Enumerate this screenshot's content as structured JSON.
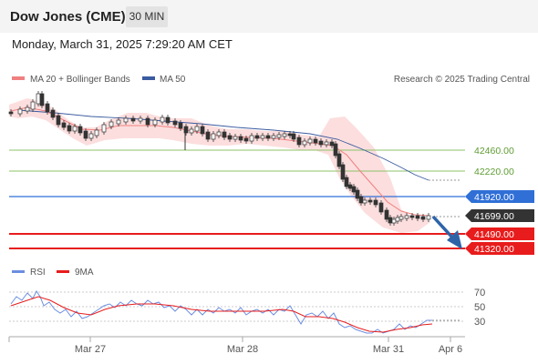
{
  "header": {
    "title": "Dow Jones (CME)",
    "timeframe": "30 MIN"
  },
  "date_text": "Monday, March 31, 2025 7:29:20 AM CET",
  "legend": {
    "ma20_label": "MA 20 + Bollinger Bands",
    "ma50_label": "MA 50",
    "credit": "Research © 2025 Trading Central"
  },
  "rsi_legend": {
    "rsi_label": "RSI",
    "ma9_label": "9MA"
  },
  "colors": {
    "ma20": "#f08080",
    "ma50": "#3a5ba0",
    "resistance": "#8dc36a",
    "pivot": "#2f6fd6",
    "support": "#e81c1c",
    "last": "#333333",
    "rsi": "#6c8ee0",
    "rsi_ma": "#e81c1c"
  },
  "chart_data": [
    {
      "type": "candlestick",
      "x_ticks": [
        "Mar 27",
        "Mar 28",
        "Mar 31",
        "Apr 6"
      ],
      "levels": [
        {
          "value": "42460.00",
          "type": "resistance"
        },
        {
          "value": "42220.00",
          "type": "resistance"
        },
        {
          "value": "41920.00",
          "type": "pivot"
        },
        {
          "value": "41699.00",
          "type": "last"
        },
        {
          "value": "41490.00",
          "type": "support"
        },
        {
          "value": "41320.00",
          "type": "support"
        }
      ],
      "forecast": "down"
    },
    {
      "type": "line",
      "title": "RSI",
      "y_ticks": [
        "70",
        "50",
        "30"
      ],
      "series": [
        {
          "name": "RSI"
        },
        {
          "name": "9MA"
        }
      ]
    }
  ]
}
